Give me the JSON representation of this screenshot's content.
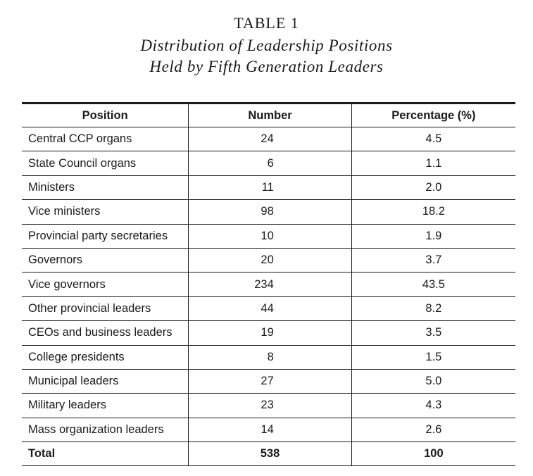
{
  "table_number": "TABLE 1",
  "title_line1": "Distribution of Leadership Positions",
  "title_line2": "Held by Fifth Generation Leaders",
  "columns": [
    "Position",
    "Number",
    "Percentage (%)"
  ],
  "rows": [
    {
      "position": "Central CCP organs",
      "number": "24",
      "percentage": "4.5"
    },
    {
      "position": "State Council organs",
      "number": "6",
      "percentage": "1.1"
    },
    {
      "position": "Ministers",
      "number": "11",
      "percentage": "2.0"
    },
    {
      "position": "Vice ministers",
      "number": "98",
      "percentage": "18.2"
    },
    {
      "position": "Provincial party secretaries",
      "number": "10",
      "percentage": "1.9"
    },
    {
      "position": "Governors",
      "number": "20",
      "percentage": "3.7"
    },
    {
      "position": "Vice governors",
      "number": "234",
      "percentage": "43.5"
    },
    {
      "position": "Other provincial leaders",
      "number": "44",
      "percentage": "8.2"
    },
    {
      "position": "CEOs and business leaders",
      "number": "19",
      "percentage": "3.5"
    },
    {
      "position": "College presidents",
      "number": "8",
      "percentage": "1.5"
    },
    {
      "position": "Municipal leaders",
      "number": "27",
      "percentage": "5.0"
    },
    {
      "position": "Military leaders",
      "number": "23",
      "percentage": "4.3"
    },
    {
      "position": "Mass organization leaders",
      "number": "14",
      "percentage": "2.6"
    }
  ],
  "total": {
    "position": "Total",
    "number": "538",
    "percentage": "100"
  }
}
